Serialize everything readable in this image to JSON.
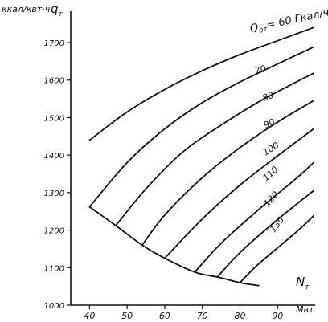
{
  "chart_data": {
    "type": "line",
    "y_axis": {
      "unit_label": "ккал/квт·ч",
      "symbol": "q",
      "symbol_sub": "т",
      "ticks": [
        1000,
        1100,
        1200,
        1300,
        1400,
        1500,
        1600,
        1700
      ],
      "tick_labels": [
        "1000",
        "1100",
        "1200",
        "1300",
        "1400",
        "1500",
        "1600",
        "1700"
      ],
      "range": [
        1000,
        1775
      ]
    },
    "x_axis": {
      "unit_label": "Мвт",
      "symbol": "N",
      "symbol_sub": "т",
      "ticks": [
        40,
        50,
        60,
        70,
        80,
        90
      ],
      "tick_labels": [
        "40",
        "50",
        "60",
        "70",
        "80",
        "90"
      ],
      "range": [
        35,
        100
      ]
    },
    "grid": false,
    "curve_label_prefix": "Q",
    "curve_label_prefix_sub": "от",
    "curve_label_first_suffix": "= 60 Гкал/ч",
    "series": [
      {
        "label": "60",
        "x": [
          40,
          50,
          60,
          70,
          80,
          90,
          100
        ],
        "y": [
          1440,
          1515,
          1575,
          1625,
          1668,
          1705,
          1740
        ]
      },
      {
        "label": "70",
        "x": [
          40,
          50,
          60,
          70,
          80,
          90,
          100
        ],
        "y": [
          1262,
          1380,
          1470,
          1540,
          1595,
          1643,
          1688
        ]
      },
      {
        "label": "80",
        "x": [
          47,
          55,
          65,
          75,
          85,
          95,
          100
        ],
        "y": [
          1212,
          1310,
          1410,
          1480,
          1542,
          1595,
          1618
        ]
      },
      {
        "label": "90",
        "x": [
          54,
          60,
          70,
          80,
          90,
          100
        ],
        "y": [
          1160,
          1240,
          1340,
          1420,
          1488,
          1545
        ]
      },
      {
        "label": "100",
        "x": [
          60,
          70,
          80,
          90,
          100
        ],
        "y": [
          1125,
          1230,
          1320,
          1398,
          1470
        ]
      },
      {
        "label": "110",
        "x": [
          68,
          75,
          85,
          95,
          100
        ],
        "y": [
          1088,
          1165,
          1255,
          1338,
          1380
        ]
      },
      {
        "label": "120",
        "x": [
          74,
          80,
          90,
          100
        ],
        "y": [
          1075,
          1140,
          1228,
          1305
        ]
      },
      {
        "label": "130",
        "x": [
          80,
          85,
          95,
          100
        ],
        "y": [
          1060,
          1110,
          1195,
          1238
        ]
      },
      {
        "label": "",
        "x": [
          40,
          47,
          54,
          60,
          68,
          74,
          80,
          85
        ],
        "y": [
          1262,
          1212,
          1160,
          1125,
          1088,
          1075,
          1060,
          1052
        ]
      }
    ]
  }
}
